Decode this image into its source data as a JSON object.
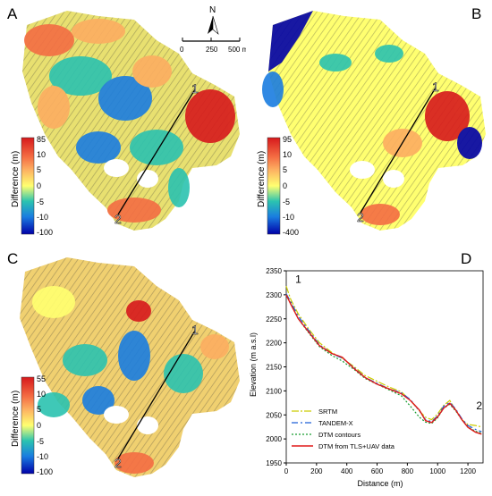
{
  "panels": {
    "a": {
      "letter": "A",
      "legend": {
        "title": "Difference (m)",
        "ticks": [
          "85",
          "10",
          "5",
          "0",
          "-5",
          "-10",
          "-100"
        ]
      },
      "profile_labels": [
        "1",
        "2"
      ]
    },
    "b": {
      "letter": "B",
      "legend": {
        "title": "Difference (m)",
        "ticks": [
          "95",
          "10",
          "5",
          "0",
          "-5",
          "-10",
          "-400"
        ]
      },
      "profile_labels": [
        "1",
        "2"
      ]
    },
    "c": {
      "letter": "C",
      "legend": {
        "title": "Difference (m)",
        "ticks": [
          "55",
          "10",
          "5",
          "0",
          "-5",
          "-10",
          "-100"
        ]
      },
      "profile_labels": [
        "1",
        "2"
      ]
    },
    "d": {
      "letter": "D"
    }
  },
  "north_arrow": {
    "label": "N"
  },
  "scale_bar": {
    "ticks": [
      "0",
      "250",
      "500 m"
    ]
  },
  "colors": {
    "ramp_high": "#d7191c",
    "ramp_mid_high": "#fdae61",
    "ramp_mid": "#ffffbf",
    "ramp_mid_low": "#2bc3b0",
    "ramp_low": "#0000a8"
  },
  "chart_data": {
    "type": "line",
    "xlabel": "Distance (m)",
    "ylabel": "Elevation (m a.s.l)",
    "xlim": [
      0,
      1300
    ],
    "ylim": [
      1950,
      2350
    ],
    "xticks": [
      0,
      200,
      400,
      600,
      800,
      1000,
      1200
    ],
    "yticks": [
      1950,
      2000,
      2050,
      2100,
      2150,
      2200,
      2250,
      2300,
      2350
    ],
    "annotations": [
      {
        "text": "1",
        "x": 60,
        "y": 2325
      },
      {
        "text": "2",
        "x": 1255,
        "y": 2062
      }
    ],
    "legend_position": "bottom-left",
    "series": [
      {
        "name": "SRTM",
        "color": "#cccc00",
        "dash": "8 2 2 2",
        "x": [
          0,
          30,
          80,
          150,
          220,
          300,
          370,
          450,
          520,
          600,
          680,
          760,
          820,
          880,
          920,
          960,
          1000,
          1040,
          1080,
          1120,
          1160,
          1200,
          1250,
          1290
        ],
        "y": [
          2318,
          2290,
          2260,
          2228,
          2200,
          2180,
          2168,
          2150,
          2132,
          2120,
          2108,
          2098,
          2080,
          2058,
          2045,
          2040,
          2052,
          2070,
          2080,
          2060,
          2040,
          2030,
          2028,
          2025
        ]
      },
      {
        "name": "TANDEM-X",
        "color": "#1f5fd8",
        "dash": "7 3 2 3",
        "x": [
          0,
          30,
          80,
          150,
          220,
          300,
          370,
          450,
          520,
          600,
          680,
          760,
          820,
          880,
          920,
          960,
          1000,
          1040,
          1080,
          1120,
          1160,
          1200,
          1250,
          1290
        ],
        "y": [
          2302,
          2285,
          2255,
          2225,
          2196,
          2178,
          2168,
          2148,
          2128,
          2116,
          2104,
          2096,
          2082,
          2058,
          2040,
          2036,
          2048,
          2068,
          2076,
          2062,
          2042,
          2028,
          2020,
          2015
        ]
      },
      {
        "name": "DTM contours",
        "color": "#169c2f",
        "dash": "2 2",
        "x": [
          0,
          30,
          80,
          150,
          220,
          300,
          370,
          450,
          520,
          600,
          680,
          760,
          820,
          880,
          920,
          960,
          1000,
          1040,
          1080,
          1120,
          1160,
          1200,
          1250,
          1290
        ],
        "y": [
          2300,
          2282,
          2250,
          2220,
          2192,
          2174,
          2162,
          2144,
          2126,
          2114,
          2102,
          2090,
          2068,
          2045,
          2035,
          2032,
          2044,
          2064,
          2072,
          2058,
          2040,
          2025,
          2016,
          2012
        ]
      },
      {
        "name": "DTM from TLS+UAV data",
        "color": "#e01a1a",
        "dash": "",
        "x": [
          0,
          30,
          80,
          150,
          220,
          300,
          370,
          450,
          520,
          600,
          680,
          760,
          820,
          880,
          920,
          960,
          1000,
          1040,
          1080,
          1120,
          1160,
          1200,
          1250,
          1290
        ],
        "y": [
          2300,
          2280,
          2250,
          2222,
          2194,
          2178,
          2170,
          2146,
          2128,
          2114,
          2104,
          2094,
          2080,
          2060,
          2038,
          2034,
          2046,
          2064,
          2074,
          2060,
          2040,
          2024,
          2014,
          2010
        ]
      }
    ]
  }
}
